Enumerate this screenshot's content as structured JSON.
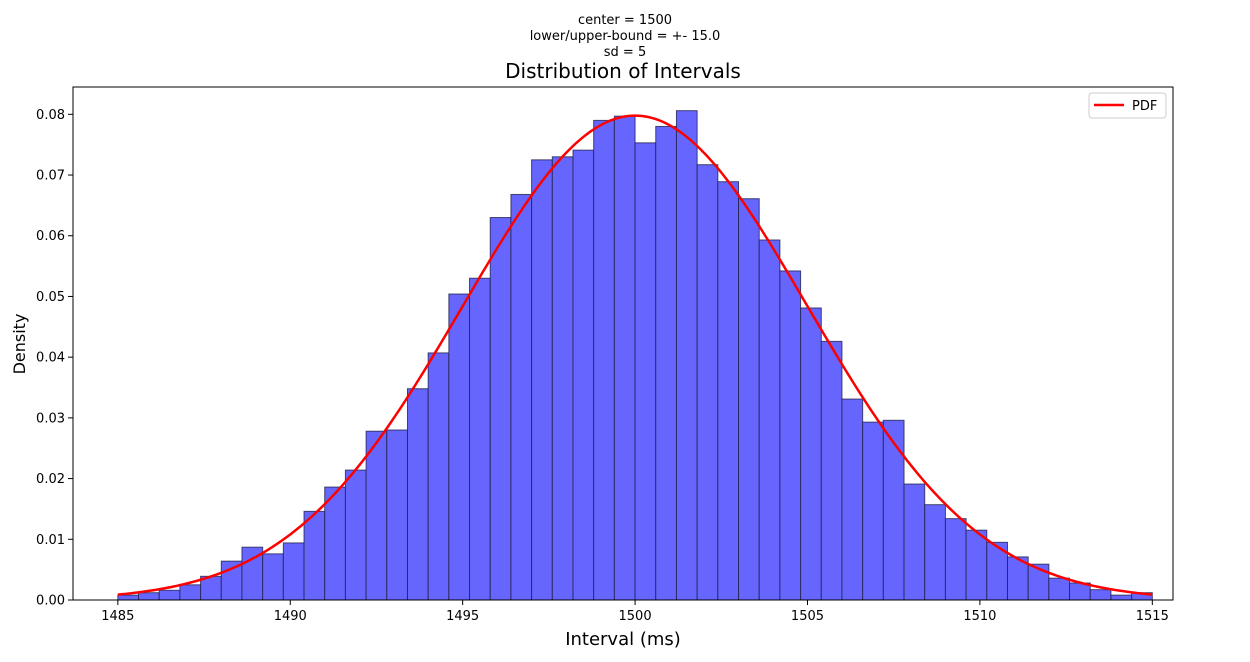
{
  "chart_data": {
    "type": "bar",
    "subtitle_lines": [
      "center = 1500",
      "lower/upper-bound = +- 15.0",
      "sd = 5"
    ],
    "title": "Distribution of Intervals",
    "xlabel": "Interval (ms)",
    "ylabel": "Density",
    "xlim": [
      1483.7,
      1515.6
    ],
    "ylim": [
      0,
      0.0845
    ],
    "x_ticks": [
      1485,
      1490,
      1495,
      1500,
      1505,
      1510,
      1515
    ],
    "y_ticks": [
      0.0,
      0.01,
      0.02,
      0.03,
      0.04,
      0.05,
      0.06,
      0.07,
      0.08
    ],
    "y_tick_labels": [
      "0.00",
      "0.01",
      "0.02",
      "0.03",
      "0.04",
      "0.05",
      "0.06",
      "0.07",
      "0.08"
    ],
    "bin_start": 1485,
    "bin_width": 0.6,
    "bin_densities": [
      0.0008,
      0.0012,
      0.0016,
      0.0025,
      0.0039,
      0.0064,
      0.0087,
      0.0076,
      0.0094,
      0.0146,
      0.0186,
      0.0214,
      0.0278,
      0.028,
      0.0348,
      0.0407,
      0.0504,
      0.053,
      0.063,
      0.0668,
      0.0725,
      0.073,
      0.0741,
      0.079,
      0.0797,
      0.0753,
      0.078,
      0.0806,
      0.0717,
      0.0689,
      0.0661,
      0.0593,
      0.0542,
      0.0481,
      0.0426,
      0.0331,
      0.0293,
      0.0296,
      0.0191,
      0.0157,
      0.0134,
      0.0115,
      0.0095,
      0.0071,
      0.0059,
      0.0036,
      0.0028,
      0.0017,
      0.0008,
      0.0012
    ],
    "pdf": {
      "name": "PDF",
      "mean": 1500,
      "sd": 5,
      "x_range": [
        1485,
        1515
      ],
      "color": "#ff0000"
    },
    "bar_color": "#6666ff",
    "bar_edge_color": "#22224d",
    "legend_position": "top-right",
    "grid": false
  }
}
